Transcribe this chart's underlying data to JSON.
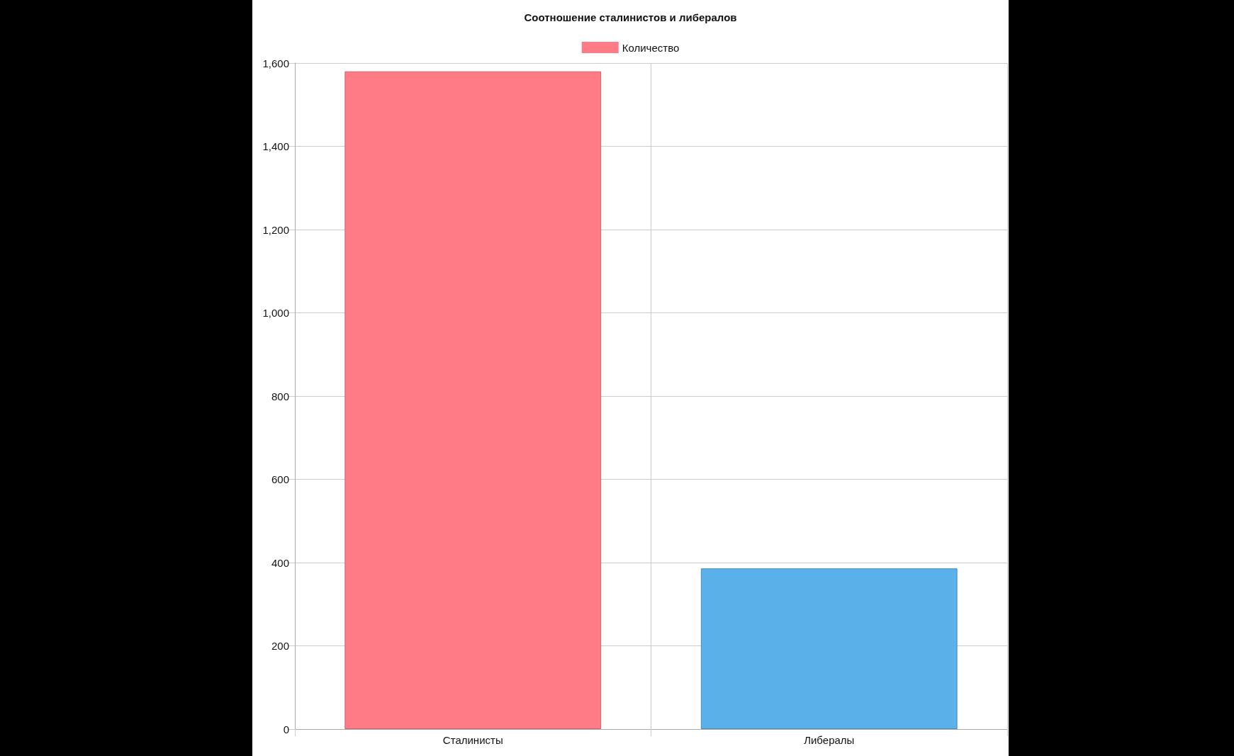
{
  "chart_data": {
    "type": "bar",
    "title": "Соотношение сталинистов и либералов",
    "categories": [
      "Сталинисты",
      "Либералы"
    ],
    "series": [
      {
        "name": "Количество",
        "values": [
          1580,
          386
        ]
      }
    ],
    "colors": [
      "#ff7b86",
      "#5ab0e8"
    ],
    "ylim": [
      0,
      1600
    ],
    "yticks": [
      0,
      200,
      400,
      600,
      800,
      {
        "value": 1000,
        "label": "1,000"
      },
      {
        "value": 1200,
        "label": "1,200"
      },
      {
        "value": 1400,
        "label": "1,400"
      },
      {
        "value": 1600,
        "label": "1,600"
      }
    ],
    "grid": true,
    "legend": "top"
  }
}
